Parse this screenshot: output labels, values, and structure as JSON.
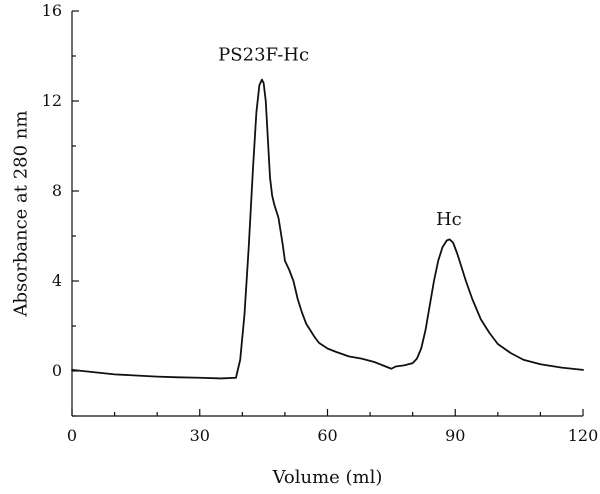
{
  "chart_data": {
    "type": "line",
    "title": "",
    "xlabel": "Volume (ml)",
    "ylabel": "Absorbance at 280 nm",
    "xlim": [
      0,
      120
    ],
    "ylim": [
      -2,
      16
    ],
    "xticks": [
      0,
      30,
      60,
      90,
      120
    ],
    "xtick_labels": [
      "0",
      "30",
      "60",
      "90",
      "120"
    ],
    "yticks": [
      0,
      4,
      8,
      12,
      16
    ],
    "ytick_labels": [
      "0",
      "4",
      "8",
      "12",
      "16"
    ],
    "grid": false,
    "legend": "none",
    "series": [
      {
        "color": "#111111",
        "x": [
          0,
          5,
          10,
          15,
          20,
          25,
          30,
          35,
          38.5,
          39.5,
          40.5,
          41.5,
          42.5,
          43.3,
          44,
          44.6,
          45,
          45.5,
          46,
          46.5,
          47,
          47.5,
          48,
          48.5,
          49,
          49.5,
          50,
          51,
          52,
          53,
          54,
          55,
          56,
          57,
          58,
          60,
          62,
          65,
          68,
          71,
          73,
          75,
          76,
          78,
          80,
          81,
          82,
          83,
          84,
          85,
          86,
          87,
          88,
          88.7,
          89.5,
          90.5,
          91.5,
          92.5,
          94,
          96,
          98,
          100,
          103,
          106,
          110,
          115,
          120
        ],
        "y": [
          0.05,
          -0.05,
          -0.15,
          -0.2,
          -0.25,
          -0.28,
          -0.3,
          -0.33,
          -0.3,
          0.5,
          2.5,
          5.5,
          9,
          11.5,
          12.7,
          12.95,
          12.8,
          12,
          10.3,
          8.6,
          7.8,
          7.4,
          7.1,
          6.8,
          6.2,
          5.6,
          4.9,
          4.5,
          4.0,
          3.2,
          2.6,
          2.1,
          1.8,
          1.5,
          1.25,
          1.0,
          0.85,
          0.65,
          0.55,
          0.4,
          0.25,
          0.1,
          0.2,
          0.25,
          0.35,
          0.55,
          1.0,
          1.8,
          2.9,
          4.0,
          4.9,
          5.5,
          5.8,
          5.85,
          5.7,
          5.2,
          4.6,
          4.0,
          3.2,
          2.3,
          1.7,
          1.2,
          0.8,
          0.5,
          0.3,
          0.15,
          0.05
        ]
      }
    ],
    "annotations": [
      {
        "text": "PS23F-Hc",
        "x": 45,
        "y": 13.8
      },
      {
        "text": "Hc",
        "x": 88.5,
        "y": 6.5
      }
    ]
  }
}
